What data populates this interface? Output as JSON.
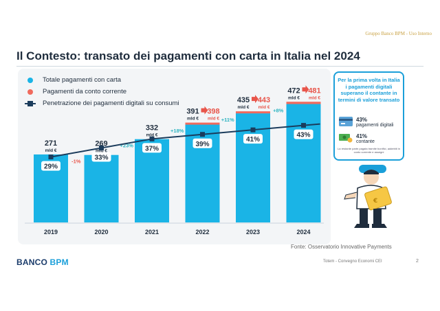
{
  "classification": "Gruppo Banco BPM - Uso Interno",
  "title": "Il Contesto: transato dei pagamenti con carta in Italia nel 2024",
  "colors": {
    "card": "#1ab4e6",
    "account": "#f06a5d",
    "line": "#1b3c5c",
    "accent_text": "#e8554a",
    "growth_text": "#2bb3c0",
    "frame_blue": "#1a9fd9"
  },
  "chart_data": {
    "type": "bar",
    "title": "Il Contesto: transato dei pagamenti con carta in Italia nel 2024",
    "categories": [
      "2019",
      "2020",
      "2021",
      "2022",
      "2023",
      "2024"
    ],
    "series": [
      {
        "name": "Totale pagamenti con carta",
        "values": [
          271,
          269,
          332,
          391,
          435,
          472
        ],
        "unit": "mld €",
        "type": "bar"
      },
      {
        "name": "Pagamenti da conto corrente",
        "values": [
          null,
          null,
          null,
          398,
          443,
          481
        ],
        "unit": "mld €",
        "type": "bar-cap"
      },
      {
        "name": "Penetrazione dei pagamenti digitali su consumi",
        "values": [
          29,
          33,
          37,
          39,
          41,
          43
        ],
        "unit": "%",
        "type": "line"
      }
    ],
    "growth_labels": [
      "-1%",
      "+23%",
      "+18%",
      "+11%",
      "+8%"
    ],
    "unit_label": "mld €",
    "ylim": [
      0,
      520
    ],
    "line_ylim": [
      0,
      100
    ],
    "xlabel": "",
    "ylabel": ""
  },
  "info_card": {
    "headline": "Per la prima volta in Italia i pagamenti digitali superano il contante in termini di valore transato",
    "digital_pct": "43%",
    "digital_label": "pagamenti digitali",
    "cash_pct": "41%",
    "cash_label": "contante",
    "note": "La restante parte pagata tramite bonifici, addebiti in conto corrente e assegni"
  },
  "icons": {
    "card": "credit-card-icon",
    "cash": "cash-icon",
    "person": "person-with-card-illustration"
  },
  "source": "Fonte: Osservatorio Innovative Payments",
  "logo": {
    "part1": "BANCO ",
    "part2": "BPM"
  },
  "footer": "Totem - Convegno Economi CEI",
  "page_number": "2"
}
